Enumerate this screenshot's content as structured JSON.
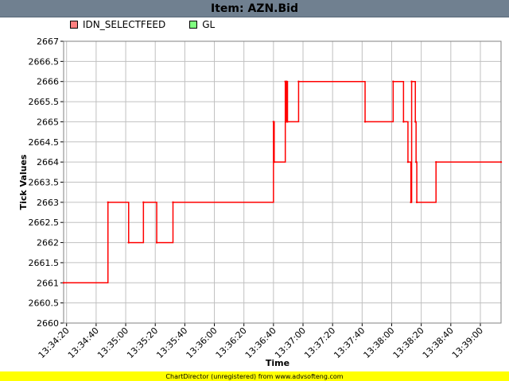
{
  "title": "Item: AZN.Bid",
  "footer": "ChartDirector (unregistered) from www.advsofteng.com",
  "legend": [
    {
      "label": "IDN_SELECTFEED",
      "color": "#ff8080"
    },
    {
      "label": "GL",
      "color": "#80ff80"
    }
  ],
  "chart_data": {
    "type": "line",
    "xlabel": "Time",
    "ylabel": "Tick Values",
    "ylim": [
      2660,
      2667
    ],
    "xlim": [
      "13:34:18",
      "13:39:14"
    ],
    "grid": true,
    "yticks": [
      "2660",
      "2660.5",
      "2661",
      "2661.5",
      "2662",
      "2662.5",
      "2663",
      "2663.5",
      "2664",
      "2664.5",
      "2665",
      "2665.5",
      "2666",
      "2666.5",
      "2667"
    ],
    "xticks": [
      "13:34:20",
      "13:34:40",
      "13:35:00",
      "13:35:20",
      "13:35:40",
      "13:36:00",
      "13:36:20",
      "13:36:40",
      "13:37:00",
      "13:37:20",
      "13:37:40",
      "13:38:00",
      "13:38:20",
      "13:38:40",
      "13:39:00"
    ],
    "series": [
      {
        "name": "IDN_SELECTFEED",
        "color": "#ff0000",
        "step": true,
        "points": [
          [
            "13:34:18",
            2661
          ],
          [
            "13:34:48",
            2663
          ],
          [
            "13:35:02",
            2662
          ],
          [
            "13:35:12",
            2663
          ],
          [
            "13:35:21",
            2662
          ],
          [
            "13:35:32",
            2663
          ],
          [
            "13:36:40",
            2665
          ],
          [
            "13:36:40.5",
            2664
          ],
          [
            "13:36:48",
            2666
          ],
          [
            "13:36:48.5",
            2665
          ],
          [
            "13:36:49",
            2666
          ],
          [
            "13:36:49.5",
            2665
          ],
          [
            "13:36:57",
            2666
          ],
          [
            "13:37:42",
            2665
          ],
          [
            "13:38:01",
            2666
          ],
          [
            "13:38:08",
            2665
          ],
          [
            "13:38:11",
            2664
          ],
          [
            "13:38:13",
            2663
          ],
          [
            "13:38:13.5",
            2666
          ],
          [
            "13:38:16",
            2665
          ],
          [
            "13:38:16.5",
            2664
          ],
          [
            "13:38:17",
            2663
          ],
          [
            "13:38:30",
            2664
          ],
          [
            "13:39:14",
            2664
          ]
        ]
      },
      {
        "name": "GL",
        "color": "#00c000",
        "step": true,
        "points": []
      }
    ]
  }
}
